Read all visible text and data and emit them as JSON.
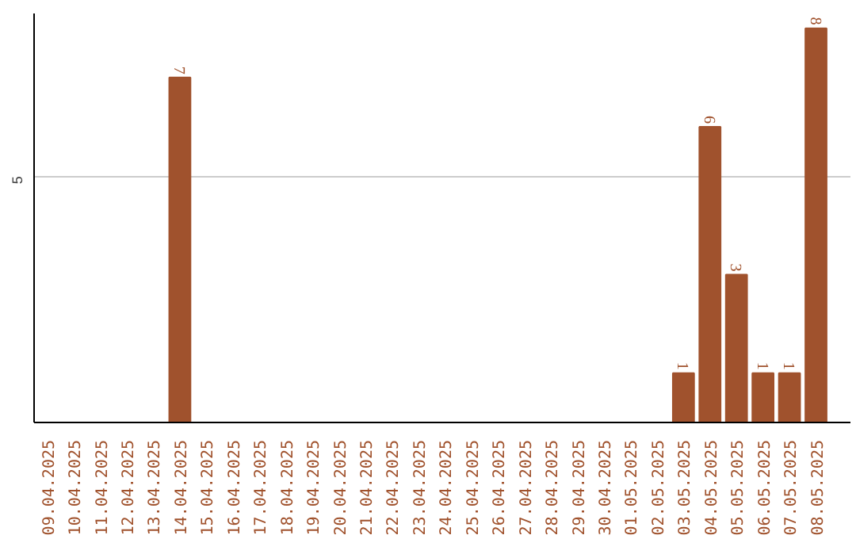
{
  "chart_data": {
    "type": "bar",
    "categories": [
      "09.04.2025",
      "10.04.2025",
      "11.04.2025",
      "12.04.2025",
      "13.04.2025",
      "14.04.2025",
      "15.04.2025",
      "16.04.2025",
      "17.04.2025",
      "18.04.2025",
      "19.04.2025",
      "20.04.2025",
      "21.04.2025",
      "22.04.2025",
      "23.04.2025",
      "24.04.2025",
      "25.04.2025",
      "26.04.2025",
      "27.04.2025",
      "28.04.2025",
      "29.04.2025",
      "30.04.2025",
      "01.05.2025",
      "02.05.2025",
      "03.05.2025",
      "04.05.2025",
      "05.05.2025",
      "06.05.2025",
      "07.05.2025",
      "08.05.2025"
    ],
    "values": [
      0,
      0,
      0,
      0,
      0,
      7,
      0,
      0,
      0,
      0,
      0,
      0,
      0,
      0,
      0,
      0,
      0,
      0,
      0,
      0,
      0,
      0,
      0,
      0,
      1,
      6,
      3,
      1,
      1,
      8
    ],
    "value_labels": [
      null,
      null,
      null,
      null,
      null,
      "7",
      null,
      null,
      null,
      null,
      null,
      null,
      null,
      null,
      null,
      null,
      null,
      null,
      null,
      null,
      null,
      null,
      null,
      null,
      "1",
      "6",
      "3",
      "1",
      "1",
      "8"
    ],
    "color": "#a0522d",
    "ylim": [
      0,
      8.3
    ],
    "yticks": [
      5
    ],
    "grid": "y"
  }
}
